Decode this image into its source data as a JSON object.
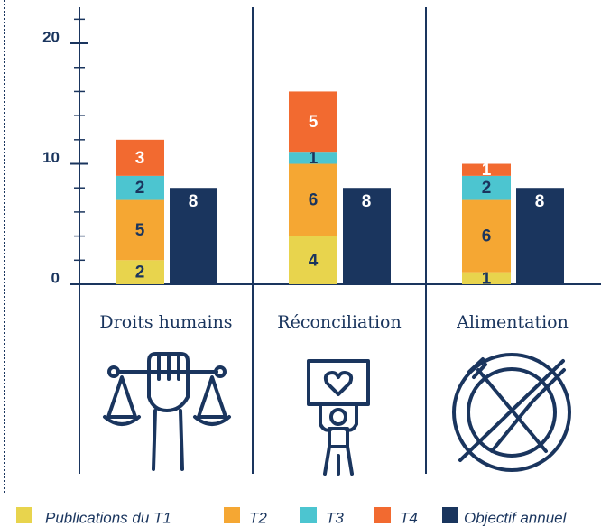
{
  "chart_data": {
    "type": "stacked_bar",
    "categories": [
      "Droits humains",
      "Réconciliation",
      "Alimentation"
    ],
    "series": [
      {
        "name": "Publications du T1",
        "color": "#e8d44d",
        "values": [
          2,
          4,
          1
        ]
      },
      {
        "name": "T2",
        "color": "#f5a733",
        "values": [
          5,
          6,
          6
        ]
      },
      {
        "name": "T3",
        "color": "#4cc5d0",
        "values": [
          2,
          1,
          2
        ]
      },
      {
        "name": "T4",
        "color": "#f26a30",
        "values": [
          3,
          5,
          1
        ]
      }
    ],
    "target": {
      "name": "Objectif annuel",
      "color": "#1a355e",
      "values": [
        8,
        8,
        8
      ]
    },
    "ylim": [
      0,
      23
    ],
    "yticks": [
      0,
      10,
      20
    ],
    "yminorticks": [
      2,
      4,
      6,
      8,
      12,
      14,
      16,
      18,
      22
    ]
  }
}
